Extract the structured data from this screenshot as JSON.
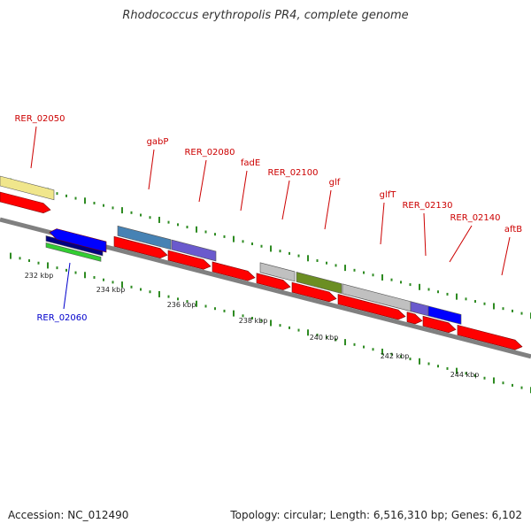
{
  "header": {
    "title": "Rhodococcus erythropolis PR4, complete genome"
  },
  "footer": {
    "accession": "Accession: NC_012490",
    "summary": "Topology: circular; Length: 6,516,310 bp; Genes: 6,102"
  },
  "map": {
    "backbone_color": "#808080",
    "tick_color": "#2e8b22",
    "scale_labels": [
      "232 kbp",
      "234 kbp",
      "236 kbp",
      "238 kbp",
      "240 kbp",
      "242 kbp",
      "244 kbp"
    ],
    "gene_labels_top": [
      "RER_02050",
      "gabP",
      "RER_02080",
      "fadE",
      "RER_02100",
      "glf",
      "glfT",
      "RER_02130",
      "RER_02140",
      "aftB"
    ],
    "gene_labels_bottom": [
      "RER_02060"
    ],
    "colors": {
      "forward_gene": "#ff0000",
      "reverse_gene": "#0000ff",
      "top_label": "#cc0000",
      "bottom_label": "#0000cc",
      "feature_yellow": "#f0e68c",
      "feature_steelblue": "#4682b4",
      "feature_slateblue": "#6a5acd",
      "feature_silver": "#c0c0c0",
      "feature_olive": "#6b8e23",
      "feature_navy": "#000080",
      "feature_green": "#32cd32"
    }
  }
}
